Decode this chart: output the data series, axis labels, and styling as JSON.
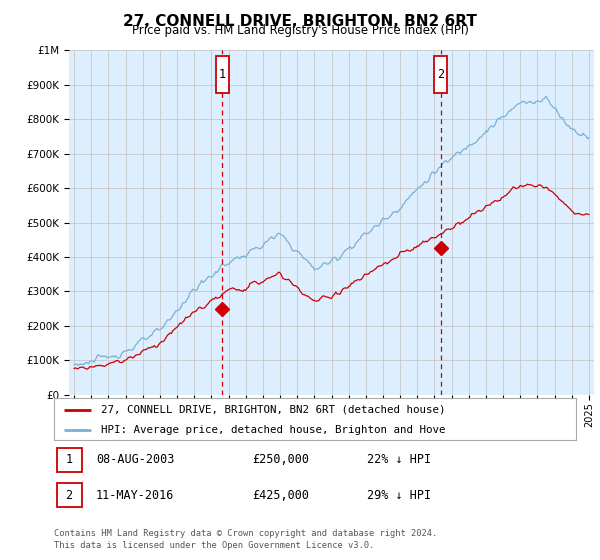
{
  "title": "27, CONNELL DRIVE, BRIGHTON, BN2 6RT",
  "subtitle": "Price paid vs. HM Land Registry's House Price Index (HPI)",
  "legend_line1": "27, CONNELL DRIVE, BRIGHTON, BN2 6RT (detached house)",
  "legend_line2": "HPI: Average price, detached house, Brighton and Hove",
  "footnote": "Contains HM Land Registry data © Crown copyright and database right 2024.\nThis data is licensed under the Open Government Licence v3.0.",
  "sale1_date": "08-AUG-2003",
  "sale1_price": 250000,
  "sale1_label": "22% ↓ HPI",
  "sale2_date": "11-MAY-2016",
  "sale2_price": 425000,
  "sale2_label": "29% ↓ HPI",
  "sale1_x": 2003.62,
  "sale2_x": 2016.37,
  "ylim": [
    0,
    1000000
  ],
  "xlim": [
    1994.7,
    2025.3
  ],
  "red_color": "#cc0000",
  "blue_color": "#7ab0d4",
  "bg_color": "#ddeeff",
  "grid_color": "#c8c8c8",
  "sale_marker_color": "#cc0000",
  "title_fontsize": 11,
  "subtitle_fontsize": 8.5
}
